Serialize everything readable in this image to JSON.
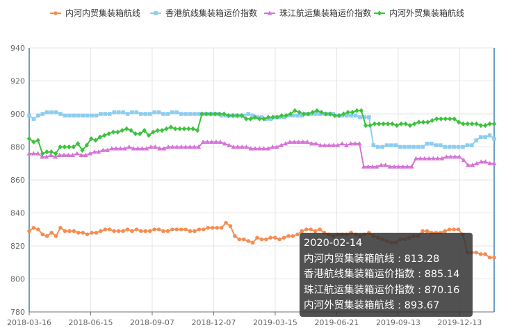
{
  "chart_data": {
    "type": "line",
    "title": "",
    "xlabel": "",
    "ylabel": "",
    "ylim": [
      780,
      940
    ],
    "yticks": [
      780,
      800,
      820,
      840,
      860,
      880,
      900,
      920,
      940
    ],
    "x_tick_labels": [
      "2018-03-16",
      "2018-06-15",
      "2018-09-07",
      "2018-12-07",
      "2019-03-15",
      "2019-06-21",
      "2019-09-13",
      "2019-12-13"
    ],
    "grid": true,
    "legend_position": "top",
    "series": [
      {
        "name": "内河内贸集装箱航线",
        "color": "#f58d52",
        "marker": "circle",
        "values": [
          829,
          831,
          830,
          827,
          826,
          828,
          826,
          831,
          829,
          829,
          829,
          828,
          828,
          827,
          828,
          828,
          829,
          830,
          830,
          829,
          829,
          829,
          830,
          829,
          830,
          829,
          829,
          829,
          830,
          830,
          829,
          829,
          830,
          830,
          830,
          830,
          829,
          829,
          830,
          830,
          831,
          831,
          831,
          831,
          834,
          832,
          826,
          824,
          824,
          823,
          822,
          825,
          824,
          824,
          825,
          825,
          824,
          825,
          826,
          826,
          827,
          829,
          830,
          830,
          829,
          830,
          828,
          827,
          826,
          827,
          827,
          827,
          828,
          827,
          826,
          827,
          828,
          826,
          825,
          824,
          823,
          822,
          822,
          824,
          824,
          825,
          826,
          826,
          829,
          829,
          828,
          828,
          828,
          829,
          830,
          830,
          830,
          827,
          816,
          816,
          816,
          815,
          815,
          813,
          813
        ]
      },
      {
        "name": "香港航线集装箱运价指数",
        "color": "#8ecdf0",
        "marker": "square",
        "values": [
          899,
          897,
          899,
          900,
          901,
          901,
          901,
          900,
          899,
          899,
          899,
          899,
          899,
          899,
          899,
          899,
          900,
          900,
          900,
          901,
          901,
          901,
          900,
          901,
          901,
          900,
          900,
          900,
          901,
          901,
          900,
          900,
          901,
          901,
          900,
          900,
          900,
          900,
          900,
          900,
          900,
          900,
          900,
          899,
          899,
          899,
          899,
          899,
          899,
          900,
          899,
          898,
          898,
          897,
          897,
          898,
          898,
          898,
          899,
          899,
          899,
          899,
          900,
          900,
          900,
          900,
          900,
          900,
          900,
          899,
          899,
          899,
          899,
          899,
          898,
          898,
          898,
          881,
          880,
          880,
          881,
          881,
          881,
          880,
          880,
          880,
          880,
          880,
          880,
          882,
          882,
          881,
          881,
          880,
          880,
          880,
          880,
          880,
          881,
          881,
          884,
          886,
          886,
          887,
          885
        ]
      },
      {
        "name": "珠江航运集装箱运价指数",
        "color": "#d574d6",
        "marker": "triangle",
        "values": [
          876,
          876,
          876,
          874,
          874,
          875,
          874,
          875,
          875,
          875,
          875,
          876,
          875,
          875,
          876,
          877,
          877,
          878,
          878,
          879,
          879,
          879,
          879,
          880,
          879,
          879,
          879,
          879,
          880,
          880,
          879,
          879,
          880,
          880,
          880,
          880,
          880,
          880,
          880,
          880,
          883,
          883,
          883,
          883,
          883,
          882,
          881,
          880,
          880,
          880,
          880,
          879,
          879,
          879,
          879,
          879,
          880,
          880,
          881,
          882,
          883,
          883,
          883,
          883,
          883,
          882,
          882,
          881,
          881,
          881,
          881,
          881,
          882,
          881,
          882,
          882,
          882,
          868,
          868,
          868,
          868,
          869,
          869,
          868,
          868,
          868,
          868,
          868,
          868,
          873,
          873,
          873,
          873,
          873,
          873,
          873,
          874,
          874,
          874,
          874,
          872,
          869,
          869,
          870,
          871,
          871,
          870,
          870
        ]
      },
      {
        "name": "内河外贸集装箱航线",
        "color": "#3cc23c",
        "marker": "diamond",
        "values": [
          885,
          883,
          884,
          876,
          877,
          877,
          876,
          880,
          880,
          880,
          880,
          882,
          878,
          881,
          885,
          884,
          886,
          887,
          888,
          889,
          889,
          890,
          891,
          890,
          888,
          888,
          890,
          887,
          889,
          890,
          890,
          891,
          892,
          891,
          891,
          891,
          891,
          891,
          890,
          900,
          900,
          900,
          900,
          900,
          900,
          899,
          899,
          899,
          899,
          897,
          897,
          898,
          897,
          897,
          898,
          898,
          898,
          899,
          899,
          900,
          902,
          901,
          900,
          900,
          901,
          902,
          901,
          900,
          900,
          899,
          899,
          900,
          901,
          901,
          902,
          902,
          893,
          893,
          894,
          894,
          894,
          894,
          894,
          893,
          894,
          894,
          893,
          894,
          895,
          895,
          895,
          896,
          897,
          897,
          897,
          897,
          897,
          895,
          894,
          894,
          894,
          894,
          893,
          893,
          894,
          894
        ]
      }
    ]
  },
  "tooltip": {
    "date": "2020-02-14",
    "rows": [
      "内河内贸集装箱航线 : 813.28",
      "香港航线集装箱运价指数 : 885.14",
      "珠江航运集装箱运价指数 : 870.16",
      "内河外贸集装箱航线 : 893.67"
    ]
  }
}
